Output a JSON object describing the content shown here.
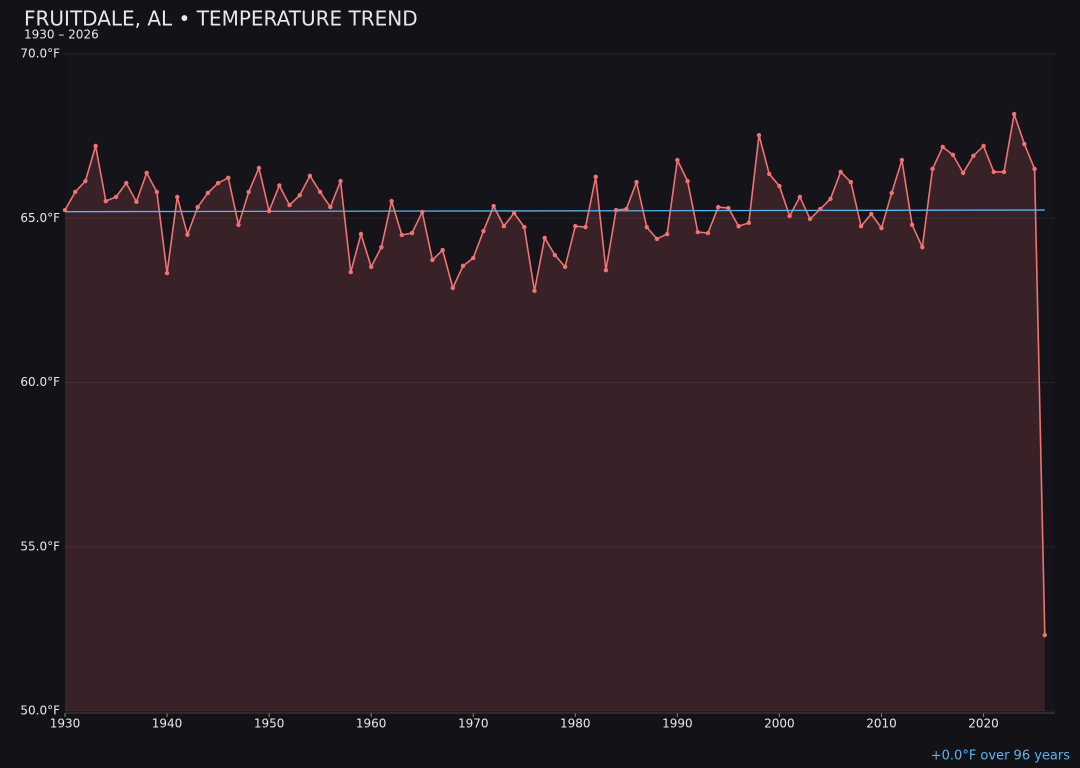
{
  "chart_data": {
    "type": "area-line",
    "title": "FRUITDALE, AL • TEMPERATURE TREND",
    "subtitle": "1930 – 2026",
    "annotation": "+0.0°F over 96 years",
    "x": [
      1930,
      1931,
      1932,
      1933,
      1934,
      1935,
      1936,
      1937,
      1938,
      1939,
      1940,
      1941,
      1942,
      1943,
      1944,
      1945,
      1946,
      1947,
      1948,
      1949,
      1950,
      1951,
      1952,
      1953,
      1954,
      1955,
      1956,
      1957,
      1958,
      1959,
      1960,
      1961,
      1962,
      1963,
      1964,
      1965,
      1966,
      1967,
      1968,
      1969,
      1970,
      1971,
      1972,
      1973,
      1974,
      1975,
      1976,
      1977,
      1978,
      1979,
      1980,
      1981,
      1982,
      1983,
      1984,
      1985,
      1986,
      1987,
      1988,
      1989,
      1990,
      1991,
      1992,
      1993,
      1994,
      1995,
      1996,
      1997,
      1998,
      1999,
      2000,
      2001,
      2002,
      2003,
      2004,
      2005,
      2006,
      2007,
      2008,
      2009,
      2010,
      2011,
      2012,
      2013,
      2014,
      2015,
      2016,
      2017,
      2018,
      2019,
      2020,
      2021,
      2022,
      2023,
      2024,
      2025,
      2026
    ],
    "series": [
      {
        "color": "#f07272",
        "values": [
          65.25,
          65.8,
          66.13,
          67.2,
          65.52,
          65.65,
          66.07,
          65.5,
          66.38,
          65.8,
          63.33,
          65.65,
          64.5,
          65.34,
          65.77,
          66.07,
          66.23,
          64.8,
          65.8,
          66.53,
          65.22,
          66.0,
          65.4,
          65.7,
          66.29,
          65.8,
          65.34,
          66.13,
          63.36,
          64.52,
          63.52,
          64.12,
          65.52,
          64.49,
          64.55,
          65.19,
          63.73,
          64.03,
          62.88,
          63.55,
          63.79,
          64.61,
          65.37,
          64.76,
          65.16,
          64.73,
          62.79,
          64.4,
          63.88,
          63.52,
          64.76,
          64.73,
          66.26,
          63.42,
          65.25,
          65.28,
          66.1,
          64.73,
          64.37,
          64.52,
          66.77,
          66.13,
          64.58,
          64.55,
          65.34,
          65.31,
          64.76,
          64.86,
          67.53,
          66.35,
          65.98,
          65.07,
          65.65,
          64.98,
          65.28,
          65.59,
          66.41,
          66.1,
          64.76,
          65.13,
          64.7,
          65.77,
          66.77,
          64.8,
          64.12,
          66.5,
          67.17,
          66.93,
          66.38,
          66.9,
          67.2,
          66.41,
          66.41,
          68.17,
          67.26,
          66.5,
          52.31
        ]
      }
    ],
    "trend": {
      "color": "#5ab4ee",
      "x": [
        1930,
        2026
      ],
      "values": [
        65.2,
        65.25
      ]
    },
    "xlim": [
      1930,
      2027
    ],
    "ylim": [
      50,
      70
    ],
    "xticks": [
      1930,
      1940,
      1950,
      1960,
      1970,
      1980,
      1990,
      2000,
      2010,
      2020
    ],
    "yticks": [
      {
        "value": 50,
        "label": "50.0°F"
      },
      {
        "value": 55,
        "label": "55.0°F"
      },
      {
        "value": 60,
        "label": "60.0°F"
      },
      {
        "value": 65,
        "label": "65.0°F"
      },
      {
        "value": 70,
        "label": "70.0°F"
      }
    ],
    "grid": true
  }
}
